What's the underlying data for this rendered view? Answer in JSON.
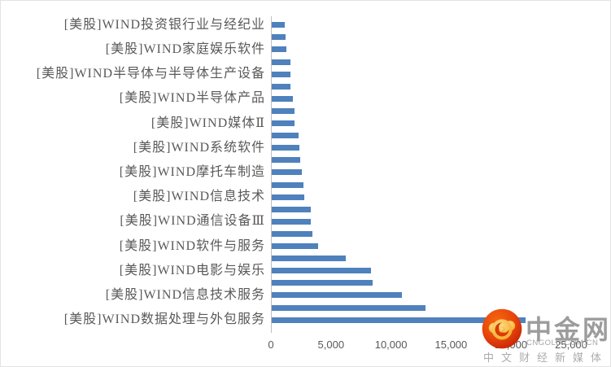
{
  "chart_data": {
    "type": "bar",
    "orientation": "horizontal",
    "title": "",
    "xlabel": "",
    "ylabel": "",
    "xlim": [
      0,
      25000
    ],
    "x_ticks": [
      0,
      5000,
      10000,
      15000,
      20000,
      25000
    ],
    "x_tick_labels": [
      "0",
      "5,000",
      "10,000",
      "15,000",
      "20,000",
      "25,000"
    ],
    "grid": false,
    "legend": "none",
    "bar_color": "#4F81BD",
    "bars": [
      {
        "label": "[美股]WIND投资银行业与经纪业",
        "value": 1100
      },
      {
        "label": "",
        "value": 1150
      },
      {
        "label": "[美股]WIND家庭娱乐软件",
        "value": 1200
      },
      {
        "label": "",
        "value": 1530
      },
      {
        "label": "[美股]WIND半导体与半导体生产设备",
        "value": 1540
      },
      {
        "label": "",
        "value": 1580
      },
      {
        "label": "[美股]WIND半导体产品",
        "value": 1760
      },
      {
        "label": "",
        "value": 1890
      },
      {
        "label": "[美股]WIND媒体Ⅱ",
        "value": 1900
      },
      {
        "label": "",
        "value": 2230
      },
      {
        "label": "[美股]WIND系统软件",
        "value": 2300
      },
      {
        "label": "",
        "value": 2370
      },
      {
        "label": "[美股]WIND摩托车制造",
        "value": 2500
      },
      {
        "label": "",
        "value": 2640
      },
      {
        "label": "[美股]WIND信息技术",
        "value": 2700
      },
      {
        "label": "",
        "value": 3220
      },
      {
        "label": "[美股]WIND通信设备Ⅲ",
        "value": 3230
      },
      {
        "label": "",
        "value": 3380
      },
      {
        "label": "[美股]WIND软件与服务",
        "value": 3850
      },
      {
        "label": "",
        "value": 6170
      },
      {
        "label": "[美股]WIND电影与娱乐",
        "value": 8240
      },
      {
        "label": "",
        "value": 8400
      },
      {
        "label": "[美股]WIND信息技术服务",
        "value": 10860
      },
      {
        "label": "",
        "value": 12790
      },
      {
        "label": "[美股]WIND数据处理与外包服务",
        "value": 21150
      }
    ]
  },
  "watermark": {
    "brand": "中金网",
    "domain": "CNGOLD.COM.CN",
    "tagline": "中文财经新媒体",
    "logo_colors": {
      "circle_outer": "#C21F05",
      "circle_inner": "#F4670F",
      "swirl_gold_light": "#FFE08A",
      "swirl_gold_dark": "#F6A623"
    }
  }
}
